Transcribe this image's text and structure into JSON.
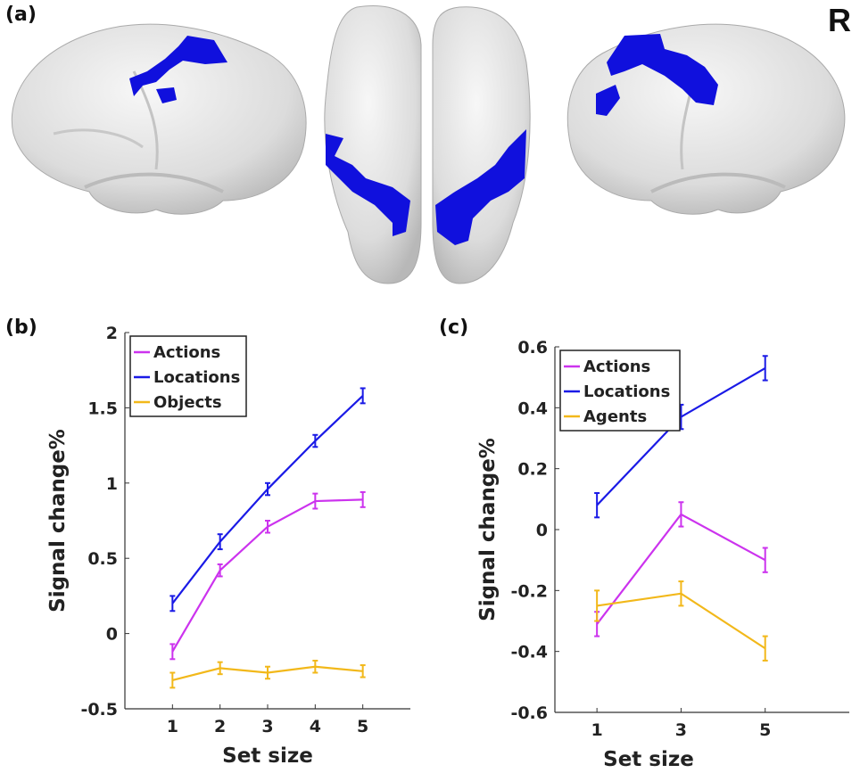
{
  "panels": {
    "a": "(a)",
    "b": "(b)",
    "c": "(c)",
    "hemisphere": "R"
  },
  "colors": {
    "actions": "#cc33ee",
    "locations": "#1a1ae6",
    "objects": "#f2b81a",
    "brain_surface": "#e4e4e4",
    "activation": "#1010dd"
  },
  "chart_data": [
    {
      "type": "line",
      "x": [
        1,
        2,
        3,
        4,
        5
      ],
      "xticks": [
        "1",
        "2",
        "3",
        "4",
        "5"
      ],
      "yticks": [
        "-0.5",
        "0",
        "0.5",
        "1",
        "1.5",
        "2"
      ],
      "xlim": [
        0,
        6
      ],
      "ylim": [
        -0.5,
        2
      ],
      "xlabel": "Set size",
      "ylabel": "Signal change%",
      "legend_position": "top-left",
      "series": [
        {
          "name": "Actions",
          "color": "#cc33ee",
          "values": [
            -0.12,
            0.42,
            0.71,
            0.88,
            0.89
          ],
          "errors": [
            0.05,
            0.04,
            0.04,
            0.05,
            0.05
          ]
        },
        {
          "name": "Locations",
          "color": "#1a1ae6",
          "values": [
            0.2,
            0.61,
            0.96,
            1.28,
            1.58
          ],
          "errors": [
            0.05,
            0.05,
            0.04,
            0.04,
            0.05
          ]
        },
        {
          "name": "Objects",
          "color": "#f2b81a",
          "values": [
            -0.31,
            -0.23,
            -0.26,
            -0.22,
            -0.25
          ],
          "errors": [
            0.05,
            0.04,
            0.04,
            0.04,
            0.04
          ]
        }
      ]
    },
    {
      "type": "line",
      "x": [
        1,
        3,
        5
      ],
      "xticks": [
        "1",
        "3",
        "5"
      ],
      "yticks": [
        "-0.6",
        "-0.4",
        "-0.2",
        "0",
        "0.2",
        "0.4",
        "0.6"
      ],
      "xlim": [
        0,
        7
      ],
      "ylim": [
        -0.6,
        0.6
      ],
      "xlabel": "Set size",
      "ylabel": "Signal change%",
      "legend_position": "top-left",
      "series": [
        {
          "name": "Actions",
          "color": "#cc33ee",
          "values": [
            -0.31,
            0.05,
            -0.1
          ],
          "errors": [
            0.04,
            0.04,
            0.04
          ]
        },
        {
          "name": "Locations",
          "color": "#1a1ae6",
          "values": [
            0.08,
            0.37,
            0.53
          ],
          "errors": [
            0.04,
            0.04,
            0.04
          ]
        },
        {
          "name": "Agents",
          "color": "#f2b81a",
          "values": [
            -0.25,
            -0.21,
            -0.39
          ],
          "errors": [
            0.05,
            0.04,
            0.04
          ]
        }
      ]
    }
  ]
}
